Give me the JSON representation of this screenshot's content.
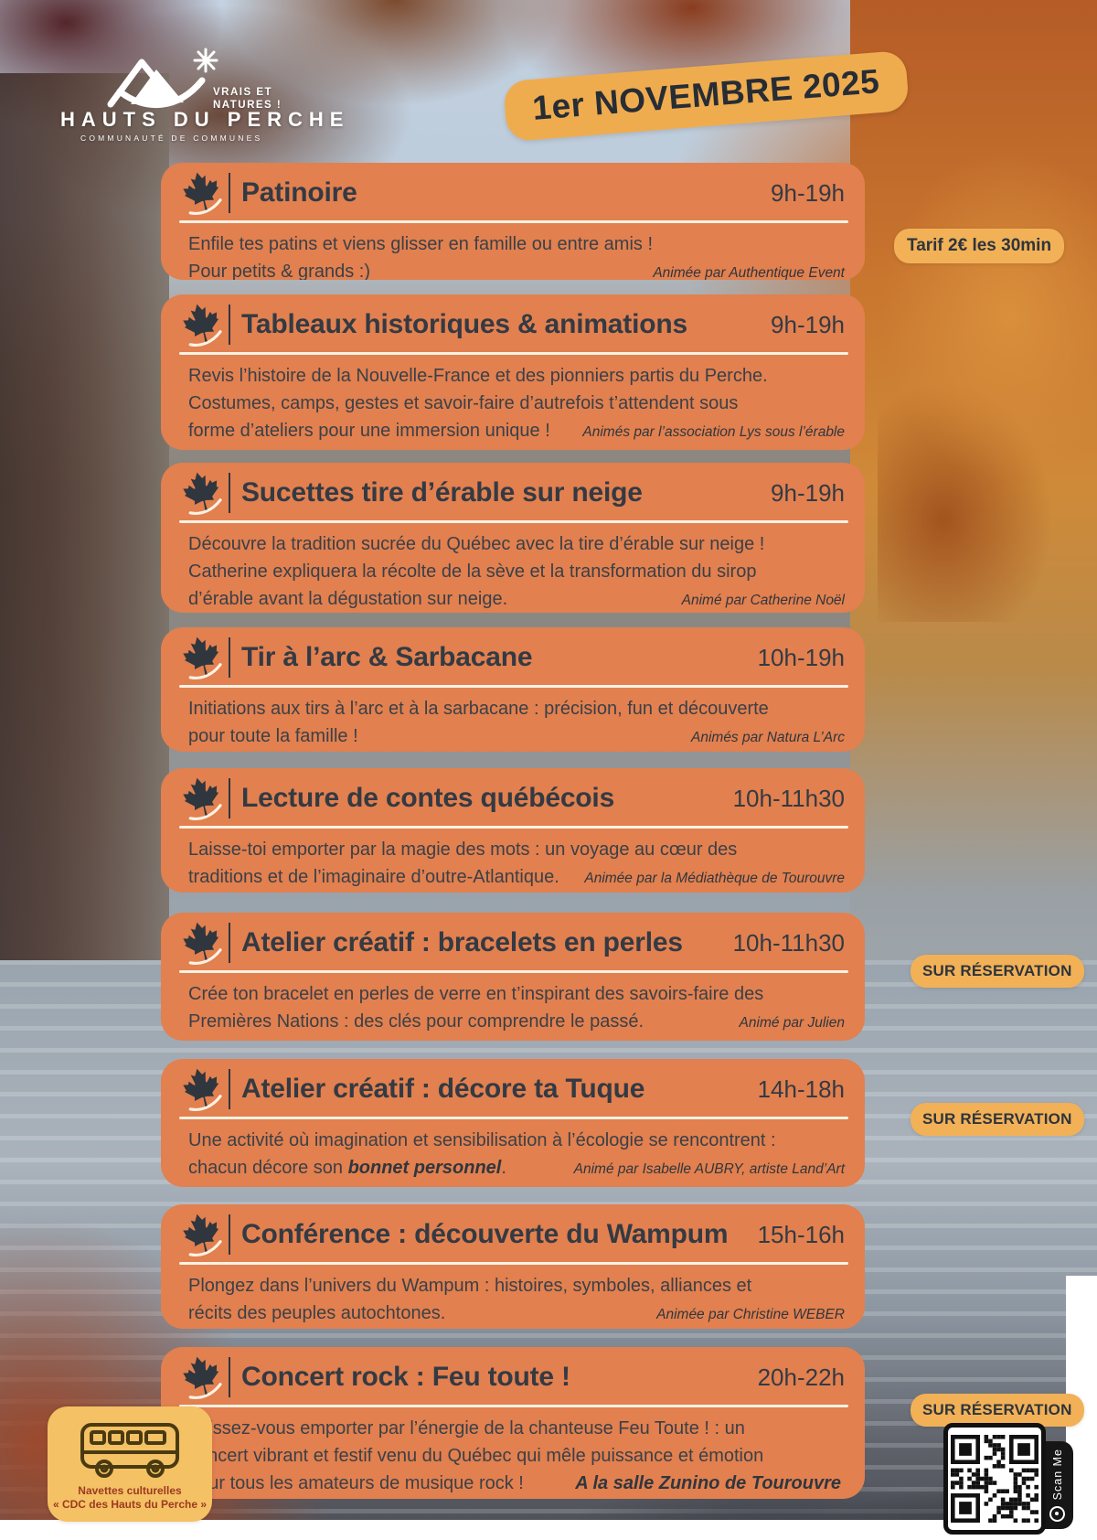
{
  "header": {
    "logo_name": "HAUTS DU PERCHE",
    "logo_sub": "COMMUNAUTÉ DE COMMUNES",
    "logo_tagline": "VRAIS ET\nNATURES !",
    "date": "1er NOVEMBRE 2025"
  },
  "labels": {
    "reservation": "SUR RÉSERVATION",
    "tarif": "Tarif 2€ les 30min",
    "scan": "Scan Me"
  },
  "shuttle": {
    "line1": "Navettes culturelles",
    "line2": "« CDC des Hauts du Perche »"
  },
  "colors": {
    "card_orange": "#E2804F",
    "badge_yellow": "#F2B157",
    "ink": "#333A43",
    "separator": "#FBF2E4"
  },
  "events": [
    {
      "title": "Patinoire",
      "time": "9h-19h",
      "lines": [
        "Enfile tes patins et viens glisser en famille ou entre amis !",
        "Pour petits & grands :)"
      ],
      "host": "Animée par Authentique Event"
    },
    {
      "title": "Tableaux historiques & animations",
      "time": "9h-19h",
      "lines": [
        "Revis l’histoire de la Nouvelle-France et des pionniers partis du Perche.",
        "Costumes, camps, gestes et savoir-faire d’autrefois t’attendent sous",
        "forme d’ateliers pour une immersion unique !"
      ],
      "host": "Animés par l’association Lys sous l’érable"
    },
    {
      "title": "Sucettes tire d’érable sur neige",
      "time": "9h-19h",
      "lines": [
        "Découvre la tradition sucrée du Québec avec la tire d’érable sur neige !",
        "Catherine expliquera la récolte de la sève et la transformation du sirop",
        "d’érable avant la dégustation sur neige."
      ],
      "host": "Animé par Catherine Noël"
    },
    {
      "title": "Tir à l’arc & Sarbacane",
      "time": "10h-19h",
      "lines": [
        "Initiations aux tirs à l’arc et à la sarbacane : précision, fun et découverte",
        "pour toute la famille !"
      ],
      "host": "Animés par Natura L’Arc"
    },
    {
      "title": "Lecture de contes québécois",
      "time": "10h-11h30",
      "lines": [
        "Laisse-toi emporter par la magie des mots : un voyage au cœur des",
        "traditions et de l’imaginaire d’outre-Atlantique."
      ],
      "host": "Animée par la Médiathèque de Tourouvre"
    },
    {
      "title": "Atelier créatif : bracelets en perles",
      "time": "10h-11h30",
      "lines": [
        "Crée ton bracelet en perles de verre en t’inspirant des savoirs-faire des",
        "Premières Nations : des clés pour comprendre le passé."
      ],
      "host": "Animé par Julien",
      "reservation": true
    },
    {
      "title": "Atelier créatif : décore ta Tuque",
      "time": "14h-18h",
      "lines": [
        "Une activité où imagination et sensibilisation à l’écologie se rencontrent :"
      ],
      "line2_prefix": "chacun décore son ",
      "line2_bold": "bonnet personnel",
      "line2_suffix": ".",
      "host": "Animé par Isabelle AUBRY, artiste Land’Art",
      "reservation": true
    },
    {
      "title": "Conférence : découverte du Wampum",
      "time": "15h-16h",
      "lines": [
        "Plongez dans l’univers du Wampum : histoires, symboles, alliances et",
        "récits des peuples autochtones."
      ],
      "host": "Animée par Christine WEBER"
    },
    {
      "title": "Concert rock : Feu toute !",
      "time": "20h-22h",
      "lines": [
        "Laissez-vous emporter par l’énergie de la chanteuse Feu Toute ! : un",
        "concert vibrant et festif venu du Québec qui mêle puissance et émotion",
        "pour tous les amateurs de musique rock !"
      ],
      "venue": "A la salle Zunino de Tourouvre",
      "reservation": true
    }
  ]
}
